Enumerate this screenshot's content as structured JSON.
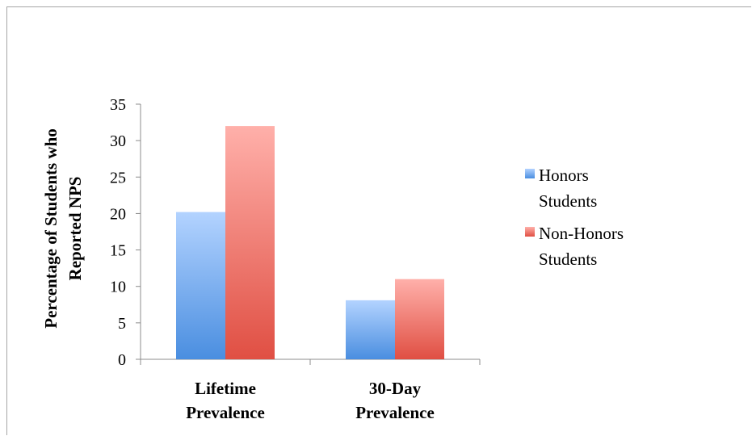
{
  "chart_data": {
    "type": "bar",
    "title": "",
    "xlabel": "",
    "ylabel_lines": [
      "Percentage of Students who",
      "Reported NPS"
    ],
    "ylim": [
      0,
      35
    ],
    "yticks": [
      "0",
      "5",
      "10",
      "15",
      "20",
      "25",
      "30",
      "35"
    ],
    "categories": [
      {
        "lines": [
          "Lifetime",
          "Prevalence"
        ]
      },
      {
        "lines": [
          "30-Day",
          "Prevalence"
        ]
      }
    ],
    "series": [
      {
        "name_lines": [
          "Honors",
          "Students"
        ],
        "values": [
          20.2,
          8.1
        ],
        "color": "#4f8fdc"
      },
      {
        "name_lines": [
          "Non-Honors",
          "Students"
        ],
        "values": [
          32,
          11
        ],
        "color": "#e0564a"
      }
    ],
    "legend": "right",
    "grid": false
  }
}
